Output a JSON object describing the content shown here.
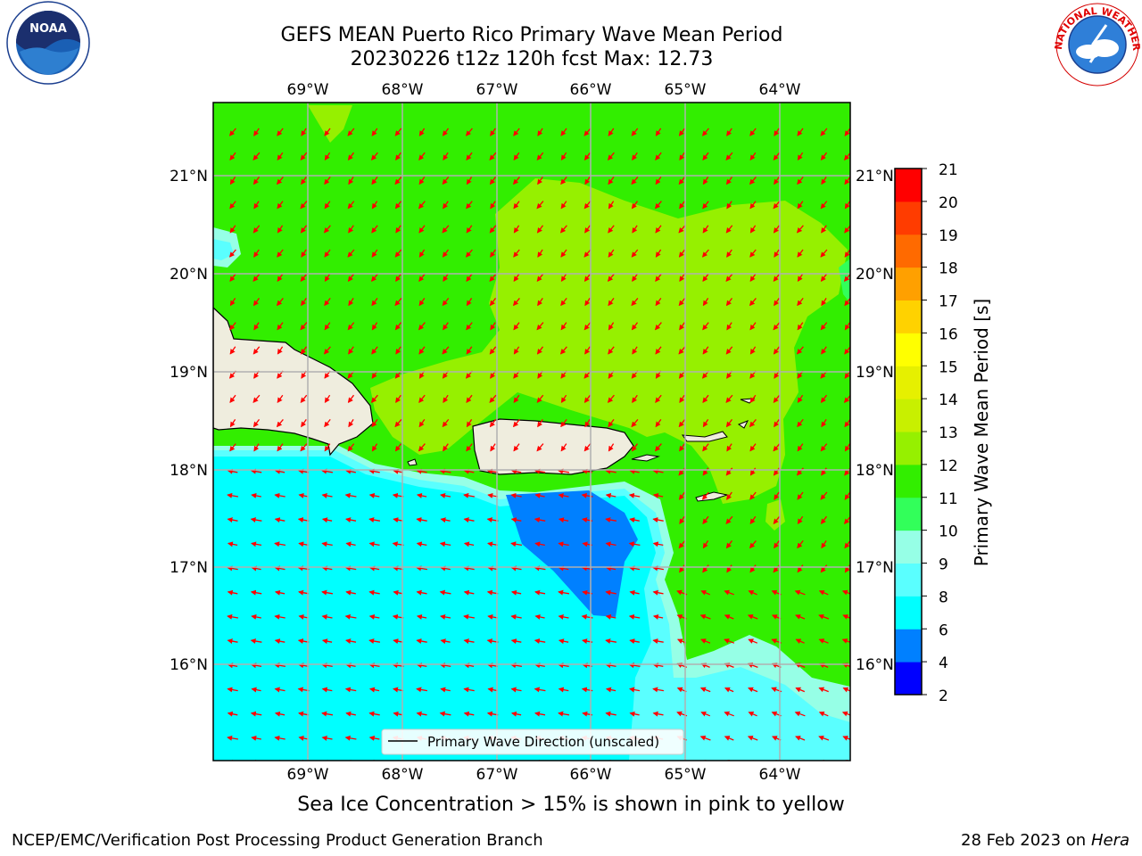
{
  "title_line1": "GEFS MEAN Puerto Rico Primary Wave Mean Period",
  "title_line2": "20230226 t12z 120h fcst   Max: 12.73",
  "map": {
    "lon_labels": [
      "69°W",
      "68°W",
      "67°W",
      "66°W",
      "65°W",
      "64°W"
    ],
    "lat_labels": [
      "21°N",
      "20°N",
      "19°N",
      "18°N",
      "17°N",
      "16°N"
    ],
    "legend_label": "Primary Wave Direction (unscaled)",
    "arrow_color": "#ff0000",
    "land_color": "#efedde"
  },
  "colorbar": {
    "label": "Primary Wave Mean Period [s]",
    "ticks": [
      "2",
      "4",
      "6",
      "8",
      "9",
      "10",
      "11",
      "12",
      "13",
      "14",
      "15",
      "16",
      "17",
      "18",
      "19",
      "20",
      "21"
    ],
    "colors": [
      "#0000ff",
      "#0080ff",
      "#00ffff",
      "#5affff",
      "#96ffe6",
      "#32ff5a",
      "#32ee00",
      "#96f000",
      "#c8f000",
      "#e6f000",
      "#ffff00",
      "#ffd200",
      "#ffa000",
      "#ff6a00",
      "#ff3c00",
      "#ff0000"
    ]
  },
  "ice_note": "Sea Ice Concentration > 15% is shown in pink to yellow",
  "footer": {
    "left": "NCEP/EMC/Verification Post Processing Product Generation Branch",
    "date": "28 Feb 2023 on",
    "host": "Hera"
  },
  "logos": {
    "noaa_text": "NOAA",
    "nws_text": "NATIONAL WEATHER SERVICE"
  }
}
